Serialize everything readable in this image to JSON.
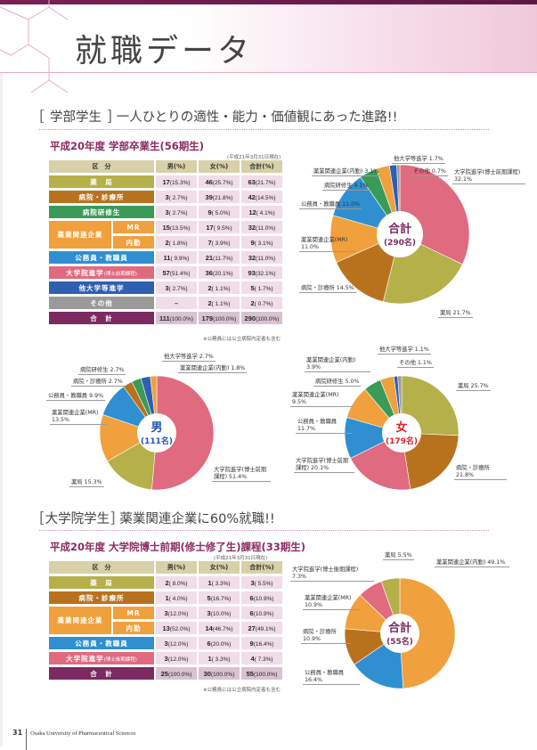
{
  "header": {
    "title": "就職データ"
  },
  "undergrad": {
    "section_bracket_label": "学部学生",
    "section_headline": "一人ひとりの適性・能力・価値観にあった進路!!",
    "table_title": "平成20年度 学部卒業生(56期生)",
    "as_of": "(平成21年3月31日現在)",
    "note": "※公務員には公立病院内定者も含む",
    "columns": [
      "区　分",
      "男(%)",
      "女(%)",
      "合計(%)"
    ],
    "rows": [
      {
        "label": "薬　局",
        "color": "#b5b04a",
        "male": "17",
        "male_pct": "(15.3%)",
        "female": "46",
        "female_pct": "(25.7%)",
        "total": "63",
        "total_pct": "(21.7%)"
      },
      {
        "label": "病院・診療所",
        "color": "#b8721e",
        "male": "3",
        "male_pct": "( 2.7%)",
        "female": "39",
        "female_pct": "(21.8%)",
        "total": "42",
        "total_pct": "(14.5%)"
      },
      {
        "label": "病院研修生",
        "color": "#3a9a58",
        "male": "3",
        "male_pct": "( 2.7%)",
        "female": "9",
        "female_pct": "( 5.0%)",
        "total": "12",
        "total_pct": "( 4.1%)"
      },
      {
        "label": "薬業関連企業",
        "sub": "MR",
        "color": "#f0a03c",
        "male": "15",
        "male_pct": "(13.5%)",
        "female": "17",
        "female_pct": "( 9.5%)",
        "total": "32",
        "total_pct": "(11.0%)"
      },
      {
        "label": "薬業関連企業",
        "sub": "内勤",
        "color": "#f0a03c",
        "male": "2",
        "male_pct": "( 1.8%)",
        "female": "7",
        "female_pct": "( 3.9%)",
        "total": "9",
        "total_pct": "( 3.1%)"
      },
      {
        "label": "公務員・教職員",
        "color": "#2f8fd0",
        "male": "11",
        "male_pct": "( 9.9%)",
        "female": "21",
        "female_pct": "(11.7%)",
        "total": "32",
        "total_pct": "(11.0%)"
      },
      {
        "label": "大学院進学",
        "label_small": "(博士前期課程)",
        "color": "#e06a80",
        "male": "57",
        "male_pct": "(51.4%)",
        "female": "36",
        "female_pct": "(20.1%)",
        "total": "93",
        "total_pct": "(32.1%)"
      },
      {
        "label": "他大学等進学",
        "color": "#2f5fb0",
        "male": "3",
        "male_pct": "( 2.7%)",
        "female": "2",
        "female_pct": "( 1.1%)",
        "total": "5",
        "total_pct": "( 1.7%)"
      },
      {
        "label": "その他",
        "color": "#9a9a9a",
        "male": "–",
        "male_pct": "",
        "female": "2",
        "female_pct": "( 1.1%)",
        "total": "2",
        "total_pct": "( 0.7%)"
      }
    ],
    "total_row": {
      "label": "合　計",
      "color": "#7b2a62",
      "male": "111",
      "male_pct": "(100.0%)",
      "female": "179",
      "female_pct": "(100.0%)",
      "total": "290",
      "total_pct": "(100.0%)"
    }
  },
  "grad": {
    "section_bracket_label": "大学院学生",
    "section_headline": "薬業関連企業に60%就職!!",
    "table_title": "平成20年度 大学院博士前期(修士修了生)課程(33期生)",
    "as_of": "(平成21年3月31日現在)",
    "note": "※公務員には公立病院内定者も含む",
    "columns": [
      "区　分",
      "男(%)",
      "女(%)",
      "合計(%)"
    ],
    "rows": [
      {
        "label": "薬　局",
        "color": "#b5b04a",
        "male": "2",
        "male_pct": "( 8.0%)",
        "female": "1",
        "female_pct": "( 3.3%)",
        "total": "3",
        "total_pct": "( 5.5%)"
      },
      {
        "label": "病院・診療所",
        "color": "#b8721e",
        "male": "1",
        "male_pct": "( 4.0%)",
        "female": "5",
        "female_pct": "(16.7%)",
        "total": "6",
        "total_pct": "(10.9%)"
      },
      {
        "label": "薬業関連企業",
        "sub": "MR",
        "color": "#f0a03c",
        "male": "3",
        "male_pct": "(12.0%)",
        "female": "3",
        "female_pct": "(10.0%)",
        "total": "6",
        "total_pct": "(10.9%)"
      },
      {
        "label": "薬業関連企業",
        "sub": "内勤",
        "color": "#f0a03c",
        "male": "13",
        "male_pct": "(52.0%)",
        "female": "14",
        "female_pct": "(46.7%)",
        "total": "27",
        "total_pct": "(49.1%)"
      },
      {
        "label": "公務員・教職員",
        "color": "#2f8fd0",
        "male": "3",
        "male_pct": "(12.0%)",
        "female": "6",
        "female_pct": "(20.0%)",
        "total": "9",
        "total_pct": "(16.4%)"
      },
      {
        "label": "大学院進学",
        "label_small": "(博士後期課程)",
        "color": "#e06a80",
        "male": "3",
        "male_pct": "(12.0%)",
        "female": "1",
        "female_pct": "( 3.3%)",
        "total": "4",
        "total_pct": "( 7.3%)"
      }
    ],
    "total_row": {
      "label": "合　計",
      "color": "#7b2a62",
      "male": "25",
      "male_pct": "(100.0%)",
      "female": "30",
      "female_pct": "(100.0%)",
      "total": "55",
      "total_pct": "(100.0%)"
    }
  },
  "chart_data": [
    {
      "type": "pie",
      "id": "undergrad-total",
      "center_title": "合計",
      "center_sub": "(290名)",
      "center_color": "#7b2a62",
      "slices": [
        {
          "label": "大学院進学(博士前期課程) 32.1%",
          "value": 32.1,
          "color": "#e06a80"
        },
        {
          "label": "薬局 21.7%",
          "value": 21.7,
          "color": "#b5b04a"
        },
        {
          "label": "病院・診療所 14.5%",
          "value": 14.5,
          "color": "#b8721e"
        },
        {
          "label": "薬業関連企業(MR) 11.0%",
          "value": 11.0,
          "color": "#f0a03c"
        },
        {
          "label": "公務員・教職員 11.0%",
          "value": 11.0,
          "color": "#2f8fd0"
        },
        {
          "label": "病院研修生 4.1%",
          "value": 4.1,
          "color": "#3a9a58"
        },
        {
          "label": "薬業関連企業(内勤) 3.1%",
          "value": 3.1,
          "color": "#f0a03c"
        },
        {
          "label": "他大学等進学 1.7%",
          "value": 1.7,
          "color": "#2f5fb0"
        },
        {
          "label": "その他 0.7%",
          "value": 0.7,
          "color": "#9a9a9a"
        }
      ]
    },
    {
      "type": "pie",
      "id": "undergrad-male",
      "center_title": "男",
      "center_sub": "(111名)",
      "center_color": "#2255b0",
      "slices": [
        {
          "label": "大学院進学(博士前期課程) 51.4%",
          "value": 51.4,
          "color": "#e06a80"
        },
        {
          "label": "薬局 15.3%",
          "value": 15.3,
          "color": "#b5b04a"
        },
        {
          "label": "薬業関連企業(MR) 13.5%",
          "value": 13.5,
          "color": "#f0a03c"
        },
        {
          "label": "公務員・教職員 9.9%",
          "value": 9.9,
          "color": "#2f8fd0"
        },
        {
          "label": "病院・診療所 2.7%",
          "value": 2.7,
          "color": "#b8721e"
        },
        {
          "label": "病院研修生 2.7%",
          "value": 2.7,
          "color": "#3a9a58"
        },
        {
          "label": "他大学等進学 2.7%",
          "value": 2.7,
          "color": "#2f5fb0"
        },
        {
          "label": "薬業関連企業(内勤) 1.8%",
          "value": 1.8,
          "color": "#f0a03c"
        }
      ]
    },
    {
      "type": "pie",
      "id": "undergrad-female",
      "center_title": "女",
      "center_sub": "(179名)",
      "center_color": "#e0202a",
      "slices": [
        {
          "label": "薬局 25.7%",
          "value": 25.7,
          "color": "#b5b04a"
        },
        {
          "label": "病院・診療所 21.8%",
          "value": 21.8,
          "color": "#b8721e"
        },
        {
          "label": "大学院進学(博士前期課程) 20.1%",
          "value": 20.1,
          "color": "#e06a80"
        },
        {
          "label": "公務員・教職員 11.7%",
          "value": 11.7,
          "color": "#2f8fd0"
        },
        {
          "label": "薬業関連企業(MR) 9.5%",
          "value": 9.5,
          "color": "#f0a03c"
        },
        {
          "label": "病院研修生 5.0%",
          "value": 5.0,
          "color": "#3a9a58"
        },
        {
          "label": "薬業関連企業(内勤) 3.9%",
          "value": 3.9,
          "color": "#f0a03c"
        },
        {
          "label": "他大学等進学 1.1%",
          "value": 1.1,
          "color": "#2f5fb0"
        },
        {
          "label": "その他 1.1%",
          "value": 1.1,
          "color": "#9a9a9a"
        }
      ]
    },
    {
      "type": "pie",
      "id": "grad-total",
      "center_title": "合計",
      "center_sub": "(55名)",
      "center_color": "#7b2a62",
      "slices": [
        {
          "label": "薬業関連企業(内勤) 49.1%",
          "value": 49.1,
          "color": "#f0a03c"
        },
        {
          "label": "公務員・教職員 16.4%",
          "value": 16.4,
          "color": "#2f8fd0"
        },
        {
          "label": "病院・診療所 10.9%",
          "value": 10.9,
          "color": "#b8721e"
        },
        {
          "label": "薬業関連企業(MR) 10.9%",
          "value": 10.9,
          "color": "#f0a03c"
        },
        {
          "label": "大学院進学(博士後期課程) 7.3%",
          "value": 7.3,
          "color": "#e06a80"
        },
        {
          "label": "薬局 5.5%",
          "value": 5.5,
          "color": "#b5b04a"
        }
      ]
    }
  ],
  "footer": {
    "page_number": "31",
    "university": "Osaka University of Pharmaceutical Sciences"
  }
}
